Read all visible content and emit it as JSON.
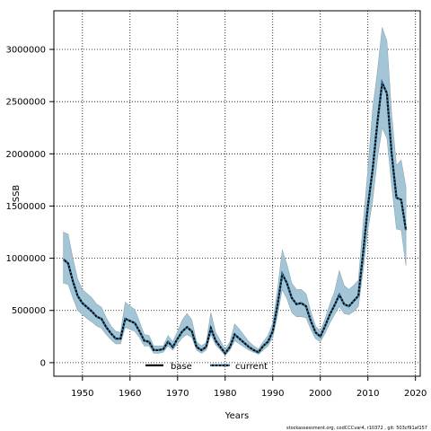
{
  "chart_data": {
    "type": "line",
    "xlabel": "Years",
    "ylabel": "SSB",
    "xlim": [
      1944,
      2021
    ],
    "ylim": [
      -130000,
      3370000
    ],
    "x_ticks": [
      1950,
      1960,
      1970,
      1980,
      1990,
      2000,
      2010,
      2020
    ],
    "y_ticks": [
      0,
      500000,
      1000000,
      1500000,
      2000000,
      2500000,
      3000000
    ],
    "y_tick_labels": [
      "0",
      "500000",
      "1000000",
      "1500000",
      "2000000",
      "2500000",
      "3000000"
    ],
    "grid": true,
    "legend_position": "bottom-center",
    "x": [
      1946,
      1947,
      1948,
      1949,
      1950,
      1951,
      1952,
      1953,
      1954,
      1955,
      1956,
      1957,
      1958,
      1959,
      1960,
      1961,
      1962,
      1963,
      1964,
      1965,
      1966,
      1967,
      1968,
      1969,
      1970,
      1971,
      1972,
      1973,
      1974,
      1975,
      1976,
      1977,
      1978,
      1979,
      1980,
      1981,
      1982,
      1983,
      1984,
      1985,
      1986,
      1987,
      1988,
      1989,
      1990,
      1991,
      1992,
      1993,
      1994,
      1995,
      1996,
      1997,
      1998,
      1999,
      2000,
      2001,
      2002,
      2003,
      2004,
      2005,
      2006,
      2007,
      2008,
      2009,
      2010,
      2011,
      2012,
      2013,
      2014,
      2015,
      2016,
      2017,
      2018
    ],
    "series": [
      {
        "name": "base",
        "values": [
          990000,
          950000,
          780000,
          640000,
          570000,
          530000,
          490000,
          440000,
          420000,
          340000,
          280000,
          230000,
          230000,
          420000,
          400000,
          380000,
          300000,
          210000,
          200000,
          120000,
          120000,
          130000,
          200000,
          150000,
          230000,
          300000,
          340000,
          300000,
          150000,
          120000,
          150000,
          330000,
          210000,
          150000,
          90000,
          150000,
          270000,
          230000,
          190000,
          150000,
          120000,
          100000,
          160000,
          200000,
          300000,
          550000,
          850000,
          760000,
          620000,
          560000,
          570000,
          540000,
          400000,
          290000,
          250000,
          350000,
          460000,
          550000,
          650000,
          560000,
          540000,
          590000,
          640000,
          1050000,
          1500000,
          1850000,
          2300000,
          2680000,
          2580000,
          2000000,
          1580000,
          1560000,
          1270000
        ],
        "color": "#000000"
      },
      {
        "name": "current",
        "values": [
          990000,
          950000,
          780000,
          640000,
          570000,
          530000,
          490000,
          440000,
          420000,
          340000,
          280000,
          230000,
          230000,
          420000,
          400000,
          380000,
          300000,
          210000,
          200000,
          120000,
          120000,
          130000,
          200000,
          150000,
          230000,
          300000,
          340000,
          300000,
          150000,
          120000,
          150000,
          330000,
          210000,
          150000,
          90000,
          150000,
          270000,
          230000,
          190000,
          150000,
          120000,
          100000,
          160000,
          200000,
          300000,
          550000,
          850000,
          760000,
          620000,
          560000,
          570000,
          540000,
          400000,
          290000,
          250000,
          350000,
          460000,
          550000,
          650000,
          560000,
          540000,
          590000,
          640000,
          1050000,
          1500000,
          1850000,
          2300000,
          2680000,
          2580000,
          2000000,
          1580000,
          1560000,
          1270000
        ],
        "lower": [
          760000,
          750000,
          620000,
          500000,
          460000,
          420000,
          390000,
          350000,
          330000,
          270000,
          220000,
          180000,
          180000,
          340000,
          320000,
          300000,
          240000,
          160000,
          160000,
          90000,
          90000,
          100000,
          160000,
          120000,
          180000,
          240000,
          270000,
          240000,
          120000,
          90000,
          120000,
          270000,
          170000,
          120000,
          70000,
          120000,
          210000,
          180000,
          150000,
          120000,
          100000,
          80000,
          120000,
          160000,
          240000,
          450000,
          700000,
          610000,
          480000,
          440000,
          440000,
          430000,
          320000,
          230000,
          200000,
          280000,
          380000,
          460000,
          540000,
          470000,
          460000,
          490000,
          540000,
          880000,
          1270000,
          1550000,
          1950000,
          2250000,
          2150000,
          1700000,
          1280000,
          1270000,
          930000
        ],
        "upper": [
          1250000,
          1230000,
          1000000,
          800000,
          700000,
          660000,
          620000,
          560000,
          530000,
          430000,
          350000,
          300000,
          290000,
          580000,
          540000,
          510000,
          390000,
          270000,
          260000,
          160000,
          160000,
          160000,
          260000,
          200000,
          300000,
          410000,
          470000,
          410000,
          200000,
          160000,
          190000,
          480000,
          290000,
          210000,
          130000,
          200000,
          370000,
          320000,
          260000,
          200000,
          160000,
          130000,
          200000,
          260000,
          380000,
          700000,
          1080000,
          940000,
          760000,
          700000,
          700000,
          660000,
          490000,
          350000,
          300000,
          420000,
          560000,
          680000,
          880000,
          740000,
          700000,
          740000,
          790000,
          1330000,
          1850000,
          2430000,
          2790000,
          3210000,
          3080000,
          2380000,
          1890000,
          1940000,
          1680000
        ],
        "color": "#000000",
        "band_color": "#a3c5d5"
      }
    ]
  },
  "footer_text": "stockassessment.org, codCCCvar4, r10372 , git: 503cf91af157"
}
